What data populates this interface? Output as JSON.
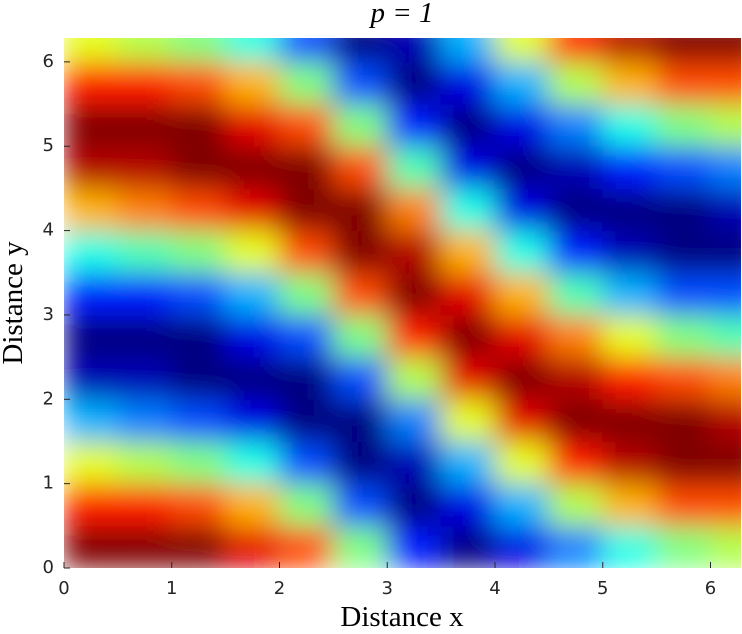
{
  "chart_data": {
    "type": "heatmap",
    "title": "p = 1",
    "x_label": "Distance x",
    "y_label": "Distance y",
    "colormap": "jet",
    "zlim": [
      -1,
      1
    ],
    "xlim": [
      0,
      6.283
    ],
    "ylim": [
      0,
      6.283
    ],
    "xticks": [
      0,
      1,
      2,
      3,
      4,
      5,
      6
    ],
    "yticks": [
      0,
      1,
      2,
      3,
      4,
      5,
      6
    ],
    "x": [
      0.25,
      0.75,
      1.25,
      1.75,
      2.25,
      2.75,
      3.25,
      3.75,
      4.25,
      4.75,
      5.25,
      5.75,
      6.25
    ],
    "y": [
      0.25,
      0.75,
      1.25,
      1.75,
      2.25,
      2.75,
      3.25,
      3.75,
      4.25,
      4.75,
      5.25,
      5.75,
      6.25
    ],
    "z": [
      [
        1.0,
        0.7,
        0.2,
        -0.4,
        -0.9,
        -1.0,
        -0.7,
        -0.2,
        0.4,
        0.9,
        1.0,
        0.7,
        0.2
      ],
      [
        1.0,
        0.7,
        0.1,
        -0.5,
        -0.9,
        -1.0,
        -0.7,
        -0.1,
        0.5,
        0.9,
        1.0,
        0.7,
        0.1
      ],
      [
        1.0,
        0.6,
        0.0,
        -0.6,
        -1.0,
        -1.0,
        -0.6,
        0.0,
        0.6,
        1.0,
        1.0,
        0.6,
        0.0
      ],
      [
        0.8,
        0.4,
        -0.2,
        -0.8,
        -1.0,
        -0.8,
        -0.4,
        0.2,
        0.8,
        1.0,
        0.8,
        0.4,
        -0.2
      ],
      [
        0.6,
        0.0,
        -0.6,
        -1.0,
        -1.0,
        -0.6,
        0.0,
        0.6,
        1.0,
        1.0,
        0.6,
        0.0,
        -0.6
      ],
      [
        0.0,
        -0.6,
        -1.0,
        -1.0,
        -0.6,
        0.0,
        0.6,
        1.0,
        1.0,
        0.6,
        0.0,
        -0.6,
        -1.0
      ],
      [
        -0.7,
        -1.0,
        -0.9,
        -0.5,
        0.1,
        0.7,
        1.0,
        0.9,
        0.5,
        -0.1,
        -0.7,
        -1.0,
        -0.9
      ],
      [
        -1.0,
        -0.8,
        -0.4,
        0.2,
        0.8,
        1.0,
        0.8,
        0.4,
        -0.2,
        -0.8,
        -1.0,
        -0.8,
        -0.4
      ],
      [
        -0.8,
        -0.4,
        0.2,
        0.8,
        1.0,
        0.8,
        0.4,
        -0.2,
        -0.8,
        -1.0,
        -0.8,
        -0.4,
        0.2
      ],
      [
        -0.5,
        0.1,
        0.7,
        1.0,
        0.9,
        0.5,
        -0.1,
        -0.7,
        -1.0,
        -0.9,
        -0.5,
        0.1,
        0.7
      ],
      [
        -0.2,
        0.4,
        0.9,
        1.0,
        0.7,
        0.2,
        -0.4,
        -0.9,
        -1.0,
        -0.7,
        -0.2,
        0.4,
        0.9
      ],
      [
        0.0,
        0.6,
        1.0,
        1.0,
        0.6,
        0.0,
        -0.6,
        -1.0,
        -1.0,
        -0.6,
        0.0,
        0.6,
        1.0
      ],
      [
        0.1,
        0.6,
        1.0,
        0.9,
        0.5,
        -0.1,
        -0.6,
        -1.0,
        -0.9,
        -0.5,
        0.1,
        0.6,
        1.0
      ]
    ]
  }
}
